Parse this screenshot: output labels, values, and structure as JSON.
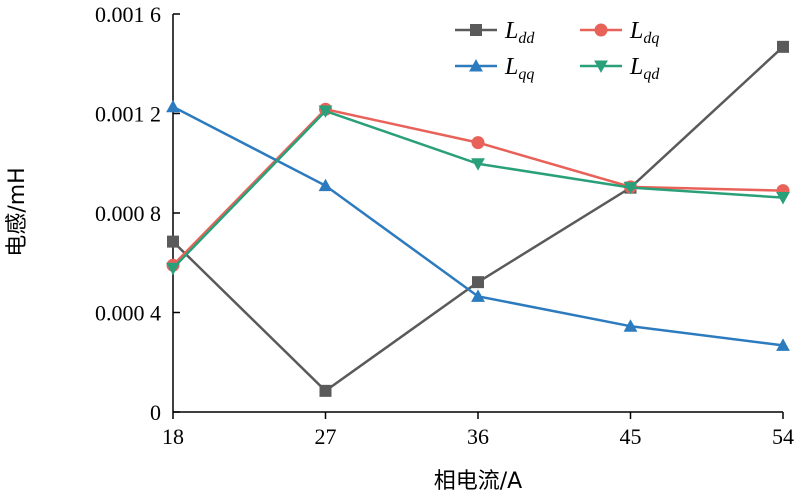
{
  "chart_data": {
    "type": "line",
    "xlabel": "相电流/A",
    "ylabel": "电感/mH",
    "x": [
      18,
      27,
      36,
      45,
      54
    ],
    "xlim": [
      18,
      54
    ],
    "ylim": [
      0,
      0.0016
    ],
    "xticks": [
      "18",
      "27",
      "36",
      "45",
      "54"
    ],
    "yticks": [
      {
        "value": 0,
        "label": "0"
      },
      {
        "value": 0.0004,
        "label": "0.000 4"
      },
      {
        "value": 0.0008,
        "label": "0.000 8"
      },
      {
        "value": 0.0012,
        "label": "0.001 2"
      },
      {
        "value": 0.0016,
        "label": "0.001 6"
      }
    ],
    "grid": false,
    "legend_position": "top-right",
    "series": [
      {
        "name": "L_dd",
        "label_main": "L",
        "label_sub": "dd",
        "color": "#5a5a5a",
        "marker": "square",
        "values": [
          0.000685,
          8.5e-05,
          0.000522,
          0.000902,
          0.001468
        ]
      },
      {
        "name": "L_dq",
        "label_main": "L",
        "label_sub": "dq",
        "color": "#e8625a",
        "marker": "circle",
        "values": [
          0.00059,
          0.001217,
          0.001083,
          0.000905,
          0.00089
        ]
      },
      {
        "name": "L_qq",
        "label_main": "L",
        "label_sub": "qq",
        "color": "#2c7bbf",
        "marker": "triangle-up",
        "values": [
          0.001227,
          0.00091,
          0.000465,
          0.000345,
          0.000268
        ]
      },
      {
        "name": "L_qd",
        "label_main": "L",
        "label_sub": "qd",
        "color": "#2aa07a",
        "marker": "triangle-down",
        "values": [
          0.000578,
          0.00121,
          0.000998,
          0.000902,
          0.000862
        ]
      }
    ]
  }
}
